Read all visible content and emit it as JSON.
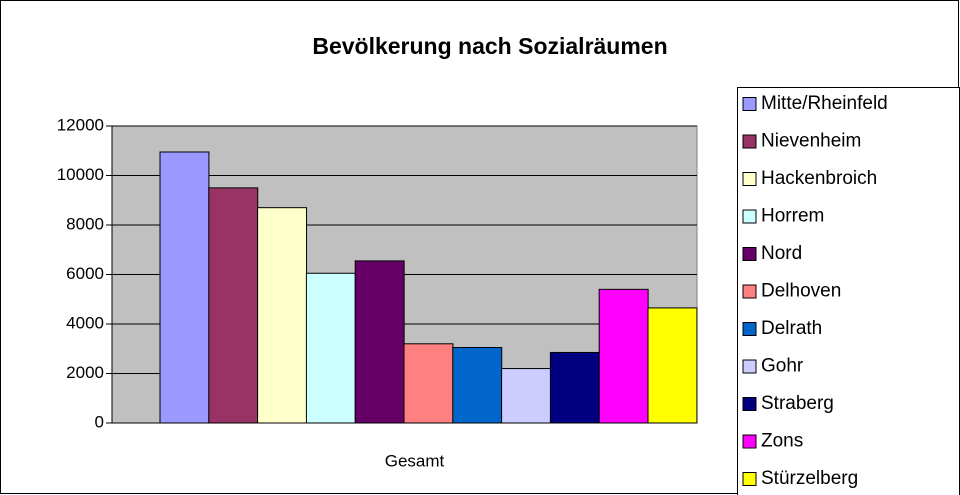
{
  "chart_data": {
    "type": "bar",
    "title": "Bevölkerung nach Sozialräumen",
    "categories": [
      "Gesamt"
    ],
    "series": [
      {
        "name": "Mitte/Rheinfeld",
        "color": "#9999ff",
        "values": [
          10950
        ]
      },
      {
        "name": "Nievenheim",
        "color": "#993366",
        "values": [
          9500
        ]
      },
      {
        "name": "Hackenbroich",
        "color": "#ffffcc",
        "values": [
          8700
        ]
      },
      {
        "name": "Horrem",
        "color": "#ccffff",
        "values": [
          6050
        ]
      },
      {
        "name": "Nord",
        "color": "#660066",
        "values": [
          6550
        ]
      },
      {
        "name": "Delhoven",
        "color": "#ff8080",
        "values": [
          3200
        ]
      },
      {
        "name": "Delrath",
        "color": "#0066cc",
        "values": [
          3050
        ]
      },
      {
        "name": "Gohr",
        "color": "#ccccff",
        "values": [
          2200
        ]
      },
      {
        "name": "Straberg",
        "color": "#000080",
        "values": [
          2850
        ]
      },
      {
        "name": "Zons",
        "color": "#ff00ff",
        "values": [
          5400
        ]
      },
      {
        "name": "Stürzelberg",
        "color": "#ffff00",
        "values": [
          4650
        ]
      }
    ],
    "ylim": [
      0,
      12000
    ],
    "yticks": [
      0,
      2000,
      4000,
      6000,
      8000,
      10000,
      12000
    ],
    "grid": true,
    "legend": "right"
  }
}
